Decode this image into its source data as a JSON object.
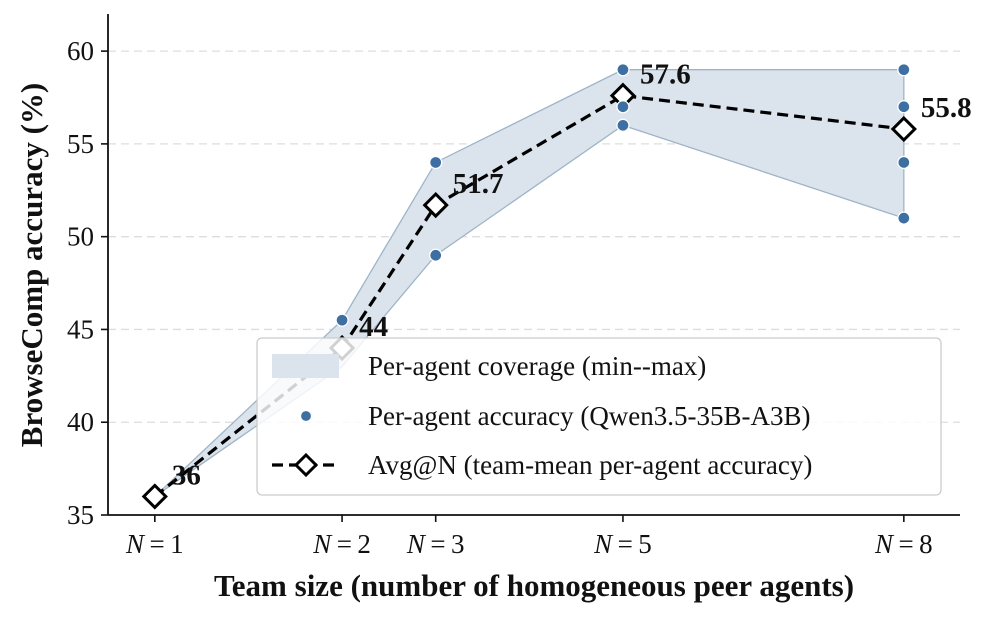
{
  "chart_data": {
    "type": "line",
    "xlabel": "Team size (number of homogeneous peer agents)",
    "ylabel": "BrowseComp accuracy (%)",
    "ylim": [
      35,
      62
    ],
    "yticks": [
      35,
      40,
      45,
      50,
      55,
      60
    ],
    "x": [
      1,
      3,
      4,
      6,
      9
    ],
    "categories": [
      "N=1",
      "N=2",
      "N=3",
      "N=5",
      "N=8"
    ],
    "xlim": [
      0.5,
      9.6
    ],
    "grid": "horizontal dashed",
    "legend_position": "lower-right",
    "colors": {
      "band_fill": "#dbe3ec",
      "band_edge": "#9fb4c8",
      "points": "#3d6fa3",
      "avg_line": "#000000"
    },
    "coverage": {
      "name": "Per-agent coverage (min--max)",
      "min": [
        36,
        43,
        49,
        56,
        51
      ],
      "max": [
        36,
        45.5,
        54,
        59,
        59
      ]
    },
    "per_agent": {
      "name": "Per-agent accuracy (Qwen3.5-35B-A3B)",
      "points": [
        {
          "x": 3,
          "y": 45.5
        },
        {
          "x": 4,
          "y": 54
        },
        {
          "x": 4,
          "y": 49
        },
        {
          "x": 6,
          "y": 59
        },
        {
          "x": 6,
          "y": 57
        },
        {
          "x": 6,
          "y": 56
        },
        {
          "x": 9,
          "y": 59
        },
        {
          "x": 9,
          "y": 57
        },
        {
          "x": 9,
          "y": 54
        },
        {
          "x": 9,
          "y": 51
        }
      ]
    },
    "avg": {
      "name": "Avg@N (team-mean per-agent accuracy)",
      "values": [
        36,
        44,
        51.7,
        57.6,
        55.8
      ],
      "labels": [
        "36",
        "44",
        "51.7",
        "57.6",
        "55.8"
      ]
    }
  }
}
